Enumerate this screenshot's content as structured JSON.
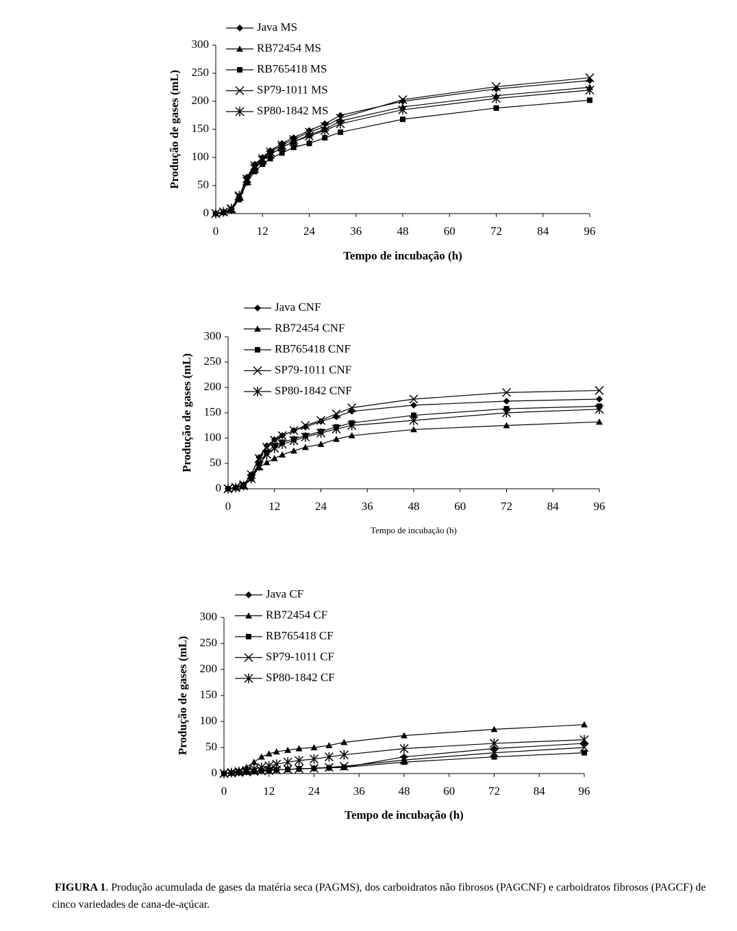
{
  "chart_data": [
    {
      "type": "line",
      "xlabel": "Tempo de incubação (h)",
      "ylabel": "Produção de gases (mL)",
      "x": [
        0,
        2,
        4,
        6,
        8,
        10,
        12,
        14,
        17,
        20,
        24,
        28,
        32,
        48,
        72,
        96
      ],
      "xlim": [
        0,
        96
      ],
      "xticks": [
        0,
        12,
        24,
        36,
        48,
        60,
        72,
        84,
        96
      ],
      "ylim": [
        0,
        300
      ],
      "yticks": [
        0,
        50,
        100,
        150,
        200,
        250,
        300
      ],
      "legend": "upper left",
      "series": [
        {
          "name": "Java MS",
          "color": "#000000",
          "marker": "diamond",
          "values": [
            0,
            3,
            8,
            30,
            65,
            88,
            100,
            112,
            125,
            135,
            148,
            160,
            175,
            200,
            222,
            237
          ]
        },
        {
          "name": "RB72454 MS",
          "color": "#000000",
          "marker": "triangle",
          "values": [
            0,
            2,
            7,
            28,
            60,
            82,
            95,
            105,
            118,
            128,
            140,
            150,
            165,
            190,
            210,
            225
          ]
        },
        {
          "name": "RB765418 MS",
          "color": "#000000",
          "marker": "square",
          "values": [
            0,
            2,
            6,
            25,
            55,
            75,
            88,
            98,
            108,
            118,
            125,
            135,
            145,
            168,
            188,
            202
          ]
        },
        {
          "name": "SP79-1011 MS",
          "color": "#000000",
          "marker": "x",
          "values": [
            0,
            3,
            8,
            30,
            62,
            85,
            98,
            110,
            122,
            132,
            145,
            155,
            170,
            203,
            226,
            242
          ]
        },
        {
          "name": "SP80-1842 MS",
          "color": "#000000",
          "marker": "asterisk",
          "values": [
            0,
            3,
            9,
            32,
            58,
            80,
            95,
            105,
            118,
            128,
            138,
            148,
            160,
            185,
            205,
            220
          ]
        }
      ]
    },
    {
      "type": "line",
      "xlabel": "Tempo de incubação (h)",
      "ylabel": "Produção de gases (mL)",
      "x": [
        0,
        2,
        4,
        6,
        8,
        10,
        12,
        14,
        17,
        20,
        24,
        28,
        32,
        48,
        72,
        96
      ],
      "xlim": [
        0,
        96
      ],
      "xticks": [
        0,
        12,
        24,
        36,
        48,
        60,
        72,
        84,
        96
      ],
      "ylim": [
        0,
        300
      ],
      "yticks": [
        0,
        50,
        100,
        150,
        200,
        250,
        300
      ],
      "legend": "upper left",
      "series": [
        {
          "name": "Java CNF",
          "color": "#000000",
          "marker": "diamond",
          "values": [
            0,
            3,
            8,
            28,
            62,
            85,
            97,
            105,
            115,
            122,
            133,
            142,
            153,
            165,
            173,
            177
          ]
        },
        {
          "name": "RB72454 CNF",
          "color": "#000000",
          "marker": "triangle",
          "values": [
            0,
            2,
            6,
            20,
            42,
            52,
            60,
            67,
            75,
            82,
            88,
            98,
            105,
            117,
            125,
            132
          ]
        },
        {
          "name": "RB765418 CNF",
          "color": "#000000",
          "marker": "square",
          "values": [
            0,
            2,
            6,
            22,
            50,
            72,
            85,
            92,
            98,
            105,
            113,
            122,
            130,
            145,
            158,
            163
          ]
        },
        {
          "name": "SP79-1011 CNF",
          "color": "#000000",
          "marker": "x",
          "values": [
            0,
            3,
            8,
            28,
            60,
            82,
            96,
            105,
            115,
            125,
            135,
            148,
            160,
            177,
            190,
            194
          ]
        },
        {
          "name": "SP80-1842 CNF",
          "color": "#000000",
          "marker": "asterisk",
          "values": [
            0,
            2,
            6,
            20,
            45,
            68,
            80,
            88,
            95,
            102,
            110,
            118,
            125,
            135,
            150,
            157
          ]
        }
      ]
    },
    {
      "type": "line",
      "xlabel": "Tempo de incubação (h)",
      "ylabel": "Produção de gases (mL)",
      "x": [
        0,
        2,
        4,
        6,
        8,
        10,
        12,
        14,
        17,
        20,
        24,
        28,
        32,
        48,
        72,
        96
      ],
      "xlim": [
        0,
        96
      ],
      "xticks": [
        0,
        12,
        24,
        36,
        48,
        60,
        72,
        84,
        96
      ],
      "ylim": [
        0,
        300
      ],
      "yticks": [
        0,
        50,
        100,
        150,
        200,
        250,
        300
      ],
      "legend": "upper left",
      "series": [
        {
          "name": "Java CF",
          "color": "#000000",
          "marker": "diamond",
          "values": [
            0,
            1,
            2,
            3,
            4,
            5,
            6,
            7,
            8,
            9,
            10,
            11,
            12,
            32,
            48,
            58
          ]
        },
        {
          "name": "RB72454 CF",
          "color": "#000000",
          "marker": "triangle",
          "values": [
            0,
            3,
            6,
            12,
            22,
            32,
            38,
            42,
            45,
            48,
            50,
            54,
            60,
            73,
            85,
            94
          ]
        },
        {
          "name": "RB765418 CF",
          "color": "#000000",
          "marker": "square",
          "values": [
            0,
            1,
            2,
            3,
            4,
            5,
            6,
            7,
            8,
            9,
            10,
            11,
            12,
            22,
            32,
            40
          ]
        },
        {
          "name": "SP79-1011 CF",
          "color": "#000000",
          "marker": "x",
          "values": [
            0,
            1,
            2,
            3,
            4,
            5,
            6,
            7,
            8,
            9,
            10,
            12,
            14,
            26,
            40,
            50
          ]
        },
        {
          "name": "SP80-1842 CF",
          "color": "#000000",
          "marker": "asterisk",
          "values": [
            0,
            2,
            4,
            6,
            9,
            12,
            15,
            18,
            22,
            25,
            28,
            32,
            36,
            48,
            58,
            65
          ]
        }
      ]
    }
  ],
  "caption": {
    "label": "FIGURA 1",
    "text": ". Produção acumulada de gases da matéria seca (PAGMS), dos carboidratos não fibrosos (PAGCNF) e carboidratos fibrosos (PAGCF) de cinco variedades de cana-de-açúcar."
  }
}
